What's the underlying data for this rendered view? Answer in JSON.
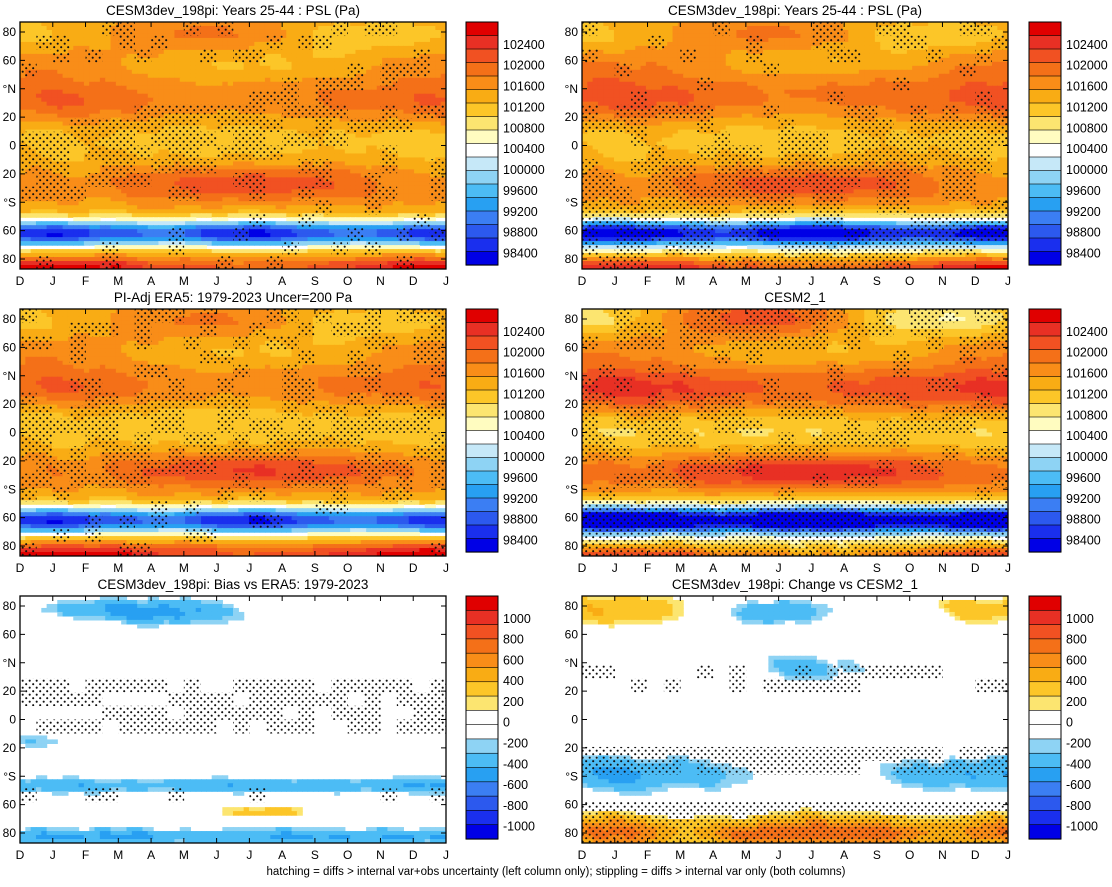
{
  "footnote": "hatching = diffs > internal var+obs uncertainty (left column only); stippling = diffs > internal var only (both columns)",
  "months": [
    "D",
    "J",
    "F",
    "M",
    "A",
    "M",
    "J",
    "J",
    "A",
    "S",
    "O",
    "N",
    "D",
    "J"
  ],
  "lat_ticks": [
    "80",
    "60",
    "°N",
    "20",
    "0",
    "20",
    "°S",
    "60",
    "80"
  ],
  "colors": {
    "psl_palette": [
      "#0000e6",
      "#1a2fee",
      "#2c59ee",
      "#3b7ef3",
      "#28a0f2",
      "#4cbcf5",
      "#8ed3f4",
      "#c6e8f8",
      "#ffffff",
      "#fffcc0",
      "#fce570",
      "#fcc628",
      "#f9ac14",
      "#f98d18",
      "#f47018",
      "#f15122",
      "#e83024",
      "#e00000"
    ],
    "diff_palette": [
      "#0000e6",
      "#1a2fee",
      "#2c59ee",
      "#3b7ef3",
      "#28a0f2",
      "#4cbcf5",
      "#8ed3f4",
      "#ffffff",
      "#ffffff",
      "#fce570",
      "#fcc628",
      "#f9ac14",
      "#f98d18",
      "#f47018",
      "#f15122",
      "#e83024",
      "#e00000"
    ]
  },
  "chart_data": [
    {
      "type": "heatmap",
      "title": "CESM3dev_198pi: Years 25-44 : PSL (Pa)",
      "x": [
        "D",
        "J",
        "F",
        "M",
        "A",
        "M",
        "J",
        "J",
        "A",
        "S",
        "O",
        "N",
        "D",
        "J"
      ],
      "y": [
        "80",
        "60",
        "°N",
        "20",
        "0",
        "20",
        "°S",
        "60",
        "80"
      ],
      "colorbar_labels": [
        "102400",
        "102000",
        "101600",
        "101200",
        "100800",
        "100400",
        "100000",
        "99600",
        "99200",
        "98800",
        "98400"
      ],
      "levels": [
        98400,
        102400
      ],
      "overlay": "hatching + stippling"
    },
    {
      "type": "heatmap",
      "title": "CESM3dev_198pi: Years 25-44 : PSL (Pa)",
      "x": [
        "D",
        "J",
        "F",
        "M",
        "A",
        "M",
        "J",
        "J",
        "A",
        "S",
        "O",
        "N",
        "D",
        "J"
      ],
      "y": [
        "80",
        "60",
        "°N",
        "20",
        "0",
        "20",
        "°S",
        "60",
        "80"
      ],
      "colorbar_labels": [
        "102400",
        "102000",
        "101600",
        "101200",
        "100800",
        "100400",
        "100000",
        "99600",
        "99200",
        "98800",
        "98400"
      ],
      "levels": [
        98400,
        102400
      ],
      "overlay": "stippling"
    },
    {
      "type": "heatmap",
      "title": "PI-Adj ERA5: 1979-2023 Uncer=200 Pa",
      "x": [
        "D",
        "J",
        "F",
        "M",
        "A",
        "M",
        "J",
        "J",
        "A",
        "S",
        "O",
        "N",
        "D",
        "J"
      ],
      "y": [
        "80",
        "60",
        "°N",
        "20",
        "0",
        "20",
        "°S",
        "60",
        "80"
      ],
      "colorbar_labels": [
        "102400",
        "102000",
        "101600",
        "101200",
        "100800",
        "100400",
        "100000",
        "99600",
        "99200",
        "98800",
        "98400"
      ],
      "levels": [
        98400,
        102400
      ],
      "overlay": "hatching + stippling"
    },
    {
      "type": "heatmap",
      "title": "CESM2_1",
      "x": [
        "D",
        "J",
        "F",
        "M",
        "A",
        "M",
        "J",
        "J",
        "A",
        "S",
        "O",
        "N",
        "D",
        "J"
      ],
      "y": [
        "80",
        "60",
        "°N",
        "20",
        "0",
        "20",
        "°S",
        "60",
        "80"
      ],
      "colorbar_labels": [
        "102400",
        "102000",
        "101600",
        "101200",
        "100800",
        "100400",
        "100000",
        "99600",
        "99200",
        "98800",
        "98400"
      ],
      "levels": [
        98400,
        102400
      ],
      "overlay": "stippling"
    },
    {
      "type": "heatmap",
      "title": "CESM3dev_198pi: Bias vs ERA5: 1979-2023",
      "x": [
        "D",
        "J",
        "F",
        "M",
        "A",
        "M",
        "J",
        "J",
        "A",
        "S",
        "O",
        "N",
        "D",
        "J"
      ],
      "y": [
        "80",
        "60",
        "°N",
        "20",
        "0",
        "20",
        "°S",
        "60",
        "80"
      ],
      "colorbar_labels": [
        "1000",
        "800",
        "600",
        "400",
        "200",
        "0",
        "-200",
        "-400",
        "-600",
        "-800",
        "-1000"
      ],
      "levels": [
        -1000,
        1000
      ],
      "overlay": "hatching + stippling"
    },
    {
      "type": "heatmap",
      "title": "CESM3dev_198pi: Change vs CESM2_1",
      "x": [
        "D",
        "J",
        "F",
        "M",
        "A",
        "M",
        "J",
        "J",
        "A",
        "S",
        "O",
        "N",
        "D",
        "J"
      ],
      "y": [
        "80",
        "60",
        "°N",
        "20",
        "0",
        "20",
        "°S",
        "60",
        "80"
      ],
      "colorbar_labels": [
        "1000",
        "800",
        "600",
        "400",
        "200",
        "0",
        "-200",
        "-400",
        "-600",
        "-800",
        "-1000"
      ],
      "levels": [
        -1000,
        1000
      ],
      "overlay": "stippling"
    }
  ]
}
